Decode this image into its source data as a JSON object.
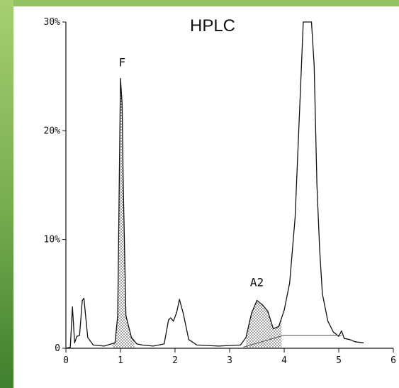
{
  "chart_data": {
    "type": "line",
    "title": "HPLC",
    "xlabel": "",
    "ylabel": "",
    "xlim": [
      0,
      6
    ],
    "ylim": [
      0,
      30
    ],
    "x_ticks": [
      "0",
      "1",
      "2",
      "3",
      "4",
      "5",
      "6"
    ],
    "y_ticks": [
      "0",
      "10%",
      "20%",
      "30%"
    ],
    "series": [
      {
        "x": [
          0.0,
          0.08,
          0.12,
          0.16,
          0.2,
          0.25,
          0.3,
          0.33,
          0.4,
          0.5,
          0.7,
          0.9,
          0.95,
          1.0,
          1.03,
          1.05,
          1.1,
          1.2,
          1.3,
          1.4,
          1.6,
          1.8,
          1.88,
          1.92,
          1.97,
          2.03,
          2.08,
          2.15,
          2.25,
          2.4,
          2.8,
          3.2,
          3.3,
          3.4,
          3.5,
          3.6,
          3.7,
          3.8,
          3.9,
          4.0,
          4.1,
          4.2,
          4.3,
          4.35,
          4.4,
          4.5,
          4.55,
          4.6,
          4.65,
          4.7,
          4.8,
          4.9,
          5.0,
          5.05,
          5.1,
          5.2,
          5.3,
          5.45
        ],
        "values": [
          0.0,
          0.1,
          3.8,
          0.5,
          1.1,
          1.2,
          4.4,
          4.6,
          1.0,
          0.3,
          0.2,
          0.5,
          3.0,
          24.8,
          22.5,
          15.0,
          3.0,
          1.0,
          0.4,
          0.3,
          0.2,
          0.4,
          2.6,
          2.8,
          2.5,
          3.3,
          4.5,
          3.2,
          0.8,
          0.3,
          0.2,
          0.3,
          1.0,
          3.2,
          4.4,
          4.0,
          3.4,
          1.8,
          2.0,
          3.5,
          6.0,
          12.0,
          24.0,
          30.0,
          30.0,
          30.0,
          26.0,
          15.0,
          9.0,
          5.0,
          2.5,
          1.5,
          1.1,
          1.6,
          0.9,
          0.8,
          0.6,
          0.5
        ]
      }
    ],
    "annotations": [
      {
        "label": "F",
        "x": 1.03,
        "y": 25.0
      },
      {
        "label": "A2",
        "x": 3.5,
        "y": 4.8
      }
    ],
    "shaded_peaks": [
      {
        "label": "F",
        "x_start": 0.85,
        "x_end": 1.25
      },
      {
        "label": "A2",
        "x_start": 3.3,
        "x_end": 3.95
      }
    ],
    "baseline": {
      "x": [
        3.25,
        4.0,
        5.05
      ],
      "values": [
        0.1,
        1.2,
        1.2
      ]
    },
    "grid": false,
    "legend": "none"
  }
}
